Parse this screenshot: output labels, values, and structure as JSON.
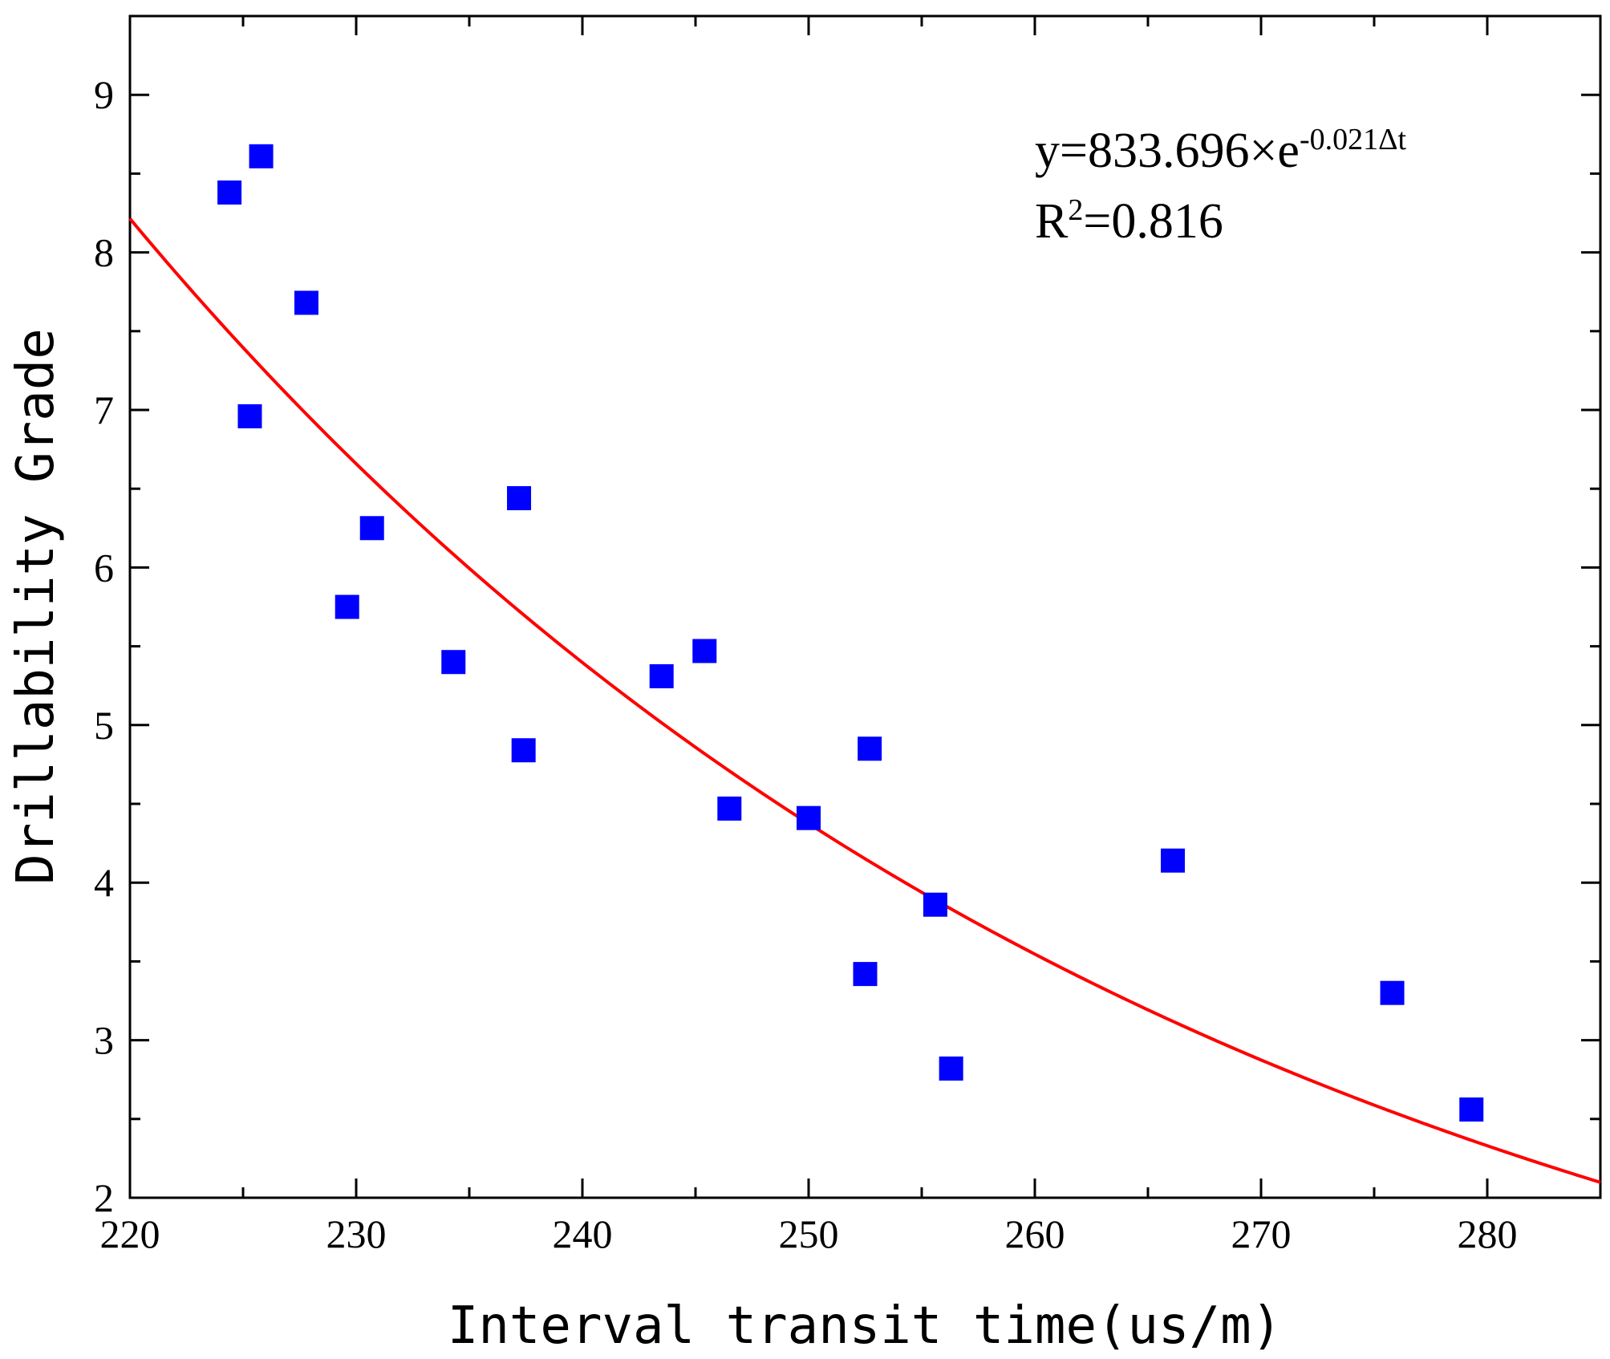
{
  "chart_data": {
    "type": "scatter",
    "title": "",
    "xlabel": "Interval transit time(us/m)",
    "ylabel": "Drillability Grade",
    "xlim": [
      220,
      285
    ],
    "ylim": [
      2,
      9.5
    ],
    "xticks": [
      220,
      230,
      240,
      250,
      260,
      270,
      280
    ],
    "yticks": [
      2,
      3,
      4,
      5,
      6,
      7,
      8,
      9
    ],
    "grid": false,
    "series": [
      {
        "name": "Drillability Grade",
        "kind": "scatter",
        "marker": "square",
        "color": "#0000ff",
        "points": [
          {
            "x": 224.4,
            "y": 8.38
          },
          {
            "x": 225.8,
            "y": 8.61
          },
          {
            "x": 225.3,
            "y": 6.96
          },
          {
            "x": 227.8,
            "y": 7.68
          },
          {
            "x": 229.6,
            "y": 5.75
          },
          {
            "x": 230.7,
            "y": 6.25
          },
          {
            "x": 234.3,
            "y": 5.4
          },
          {
            "x": 237.2,
            "y": 6.44
          },
          {
            "x": 237.4,
            "y": 4.84
          },
          {
            "x": 243.5,
            "y": 5.31
          },
          {
            "x": 245.4,
            "y": 5.47
          },
          {
            "x": 246.5,
            "y": 4.47
          },
          {
            "x": 250.0,
            "y": 4.41
          },
          {
            "x": 252.5,
            "y": 3.42
          },
          {
            "x": 252.7,
            "y": 4.85
          },
          {
            "x": 255.6,
            "y": 3.86
          },
          {
            "x": 256.3,
            "y": 2.82
          },
          {
            "x": 266.1,
            "y": 4.14
          },
          {
            "x": 275.8,
            "y": 3.3
          },
          {
            "x": 279.3,
            "y": 2.56
          }
        ]
      },
      {
        "name": "Exponential fit",
        "kind": "line",
        "color": "#ff0000",
        "equation": {
          "a": 833.696,
          "b": -0.021
        },
        "x_range": [
          220,
          285
        ]
      }
    ],
    "annotations": {
      "equation_prefix": "y=833.696×e",
      "equation_exponent": "-0.021Δt",
      "r2_prefix": "R",
      "r2_exponent": "2",
      "r2_value": "=0.816"
    }
  }
}
